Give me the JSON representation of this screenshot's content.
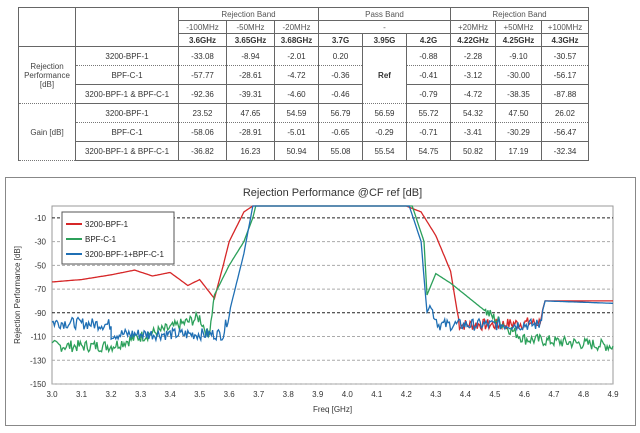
{
  "table": {
    "group_headers": [
      "Rejection Band",
      "Pass Band",
      "Rejection Band"
    ],
    "offsets": [
      "-100MHz",
      "-50MHz",
      "-20MHz",
      "-",
      "+20MHz",
      "+50MHz",
      "+100MHz"
    ],
    "freqs": [
      "3.6GHz",
      "3.65GHz",
      "3.68GHz",
      "3.7G",
      "3.95G",
      "4.2G",
      "4.22GHz",
      "4.25GHz",
      "4.3GHz"
    ],
    "sections": [
      {
        "label": "Rejection Performance [dB]",
        "rows": [
          {
            "name": "3200-BPF-1",
            "values": [
              "-33.08",
              "-8.94",
              "-2.01",
              "0.20",
              "Ref",
              "-0.88",
              "-2.28",
              "-9.10",
              "-30.57"
            ]
          },
          {
            "name": "BPF-C-1",
            "values": [
              "-57.77",
              "-28.61",
              "-4.72",
              "-0.36",
              "",
              "-0.41",
              "-3.12",
              "-30.00",
              "-56.17"
            ]
          },
          {
            "name": "3200-BPF-1 & BPF-C-1",
            "values": [
              "-92.36",
              "-39.31",
              "-4.60",
              "-0.46",
              "",
              "-0.79",
              "-4.72",
              "-38.35",
              "-87.88"
            ]
          }
        ]
      },
      {
        "label": "Gain [dB]",
        "rows": [
          {
            "name": "3200-BPF-1",
            "values": [
              "23.52",
              "47.65",
              "54.59",
              "56.79",
              "56.59",
              "55.72",
              "54.32",
              "47.50",
              "26.02"
            ]
          },
          {
            "name": "BPF-C-1",
            "values": [
              "-58.06",
              "-28.91",
              "-5.01",
              "-0.65",
              "-0.29",
              "-0.71",
              "-3.41",
              "-30.29",
              "-56.47"
            ]
          },
          {
            "name": "3200-BPF-1 & BPF-C-1",
            "values": [
              "-36.82",
              "16.23",
              "50.94",
              "55.08",
              "55.54",
              "54.75",
              "50.82",
              "17.19",
              "-32.34"
            ]
          }
        ]
      }
    ]
  },
  "chart_data": {
    "type": "line",
    "title": "Rejection Performance @CF ref [dB]",
    "xlabel": "Freq [GHz]",
    "ylabel": "Rejection Performance [dB]",
    "xlim": [
      3.0,
      4.9
    ],
    "ylim": [
      -150,
      0
    ],
    "xticks": [
      "3.0",
      "3.1",
      "3.2",
      "3.3",
      "3.4",
      "3.5",
      "3.6",
      "3.7",
      "3.8",
      "3.9",
      "4.0",
      "4.1",
      "4.2",
      "4.3",
      "4.4",
      "4.5",
      "4.6",
      "4.7",
      "4.8",
      "4.9"
    ],
    "yticks": [
      "-10",
      "-30",
      "-50",
      "-70",
      "-90",
      "-110",
      "-130",
      "-150"
    ],
    "legend_position": "top-left",
    "series": [
      {
        "name": "3200-BPF-1",
        "color": "#d62728",
        "points": [
          [
            3.0,
            -64
          ],
          [
            3.1,
            -62
          ],
          [
            3.2,
            -58
          ],
          [
            3.28,
            -54
          ],
          [
            3.34,
            -59
          ],
          [
            3.4,
            -56
          ],
          [
            3.46,
            -67
          ],
          [
            3.5,
            -62
          ],
          [
            3.55,
            -78
          ],
          [
            3.58,
            -50
          ],
          [
            3.6,
            -30
          ],
          [
            3.65,
            -5
          ],
          [
            3.68,
            0
          ],
          [
            4.2,
            0
          ],
          [
            4.25,
            -5
          ],
          [
            4.3,
            -25
          ],
          [
            4.35,
            -55
          ],
          [
            4.38,
            -100
          ],
          [
            4.5,
            -100
          ],
          [
            4.65,
            -98
          ],
          [
            4.67,
            -80
          ],
          [
            4.9,
            -80
          ]
        ]
      },
      {
        "name": "BPF-C-1",
        "color": "#2ca05a",
        "points": [
          [
            3.0,
            -118
          ],
          [
            3.2,
            -118
          ],
          [
            3.3,
            -110
          ],
          [
            3.4,
            -103
          ],
          [
            3.5,
            -94
          ],
          [
            3.53,
            -110
          ],
          [
            3.55,
            -75
          ],
          [
            3.6,
            -50
          ],
          [
            3.65,
            -30
          ],
          [
            3.68,
            -10
          ],
          [
            3.69,
            0
          ],
          [
            4.22,
            0
          ],
          [
            4.26,
            -30
          ],
          [
            4.27,
            -75
          ],
          [
            4.3,
            -57
          ],
          [
            4.35,
            -65
          ],
          [
            4.5,
            -95
          ],
          [
            4.6,
            -112
          ],
          [
            4.9,
            -118
          ]
        ]
      },
      {
        "name": "3200-BPF-1+BPF-C-1",
        "color": "#1f6fb4",
        "points": [
          [
            3.0,
            -98
          ],
          [
            3.2,
            -100
          ],
          [
            3.2,
            -108
          ],
          [
            3.5,
            -108
          ],
          [
            3.58,
            -108
          ],
          [
            3.6,
            -90
          ],
          [
            3.65,
            -40
          ],
          [
            3.68,
            0
          ],
          [
            4.21,
            0
          ],
          [
            4.25,
            -30
          ],
          [
            4.27,
            -90
          ],
          [
            4.28,
            -84
          ],
          [
            4.31,
            -100
          ],
          [
            4.65,
            -100
          ],
          [
            4.67,
            -80
          ],
          [
            4.9,
            -82
          ]
        ]
      }
    ]
  }
}
